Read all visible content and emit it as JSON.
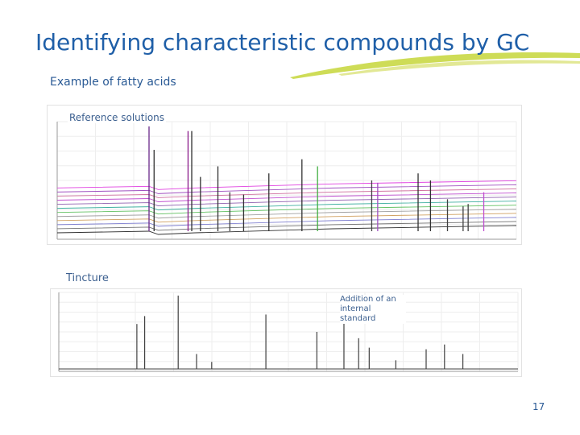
{
  "slide": {
    "title": "Identifying characteristic compounds by GC",
    "subtitle": "Example of fatty acids",
    "page_number": "17",
    "accent_colors": {
      "title": "#1f5fa8",
      "swoosh": "#c6d63a"
    }
  },
  "chart_data": [
    {
      "type": "line",
      "label": "Reference solutions",
      "xlim": [
        0,
        100
      ],
      "ylim": [
        0,
        100
      ],
      "grid": true,
      "stacked_traces": 12,
      "trace_colors": [
        "#e040e0",
        "#a050c0",
        "#d070a0",
        "#c050d0",
        "#9060b0",
        "#40b0a0",
        "#60c060",
        "#a0a0a0",
        "#d0a060",
        "#8080d0",
        "#707070",
        "#303030"
      ],
      "peaks": [
        {
          "x": 20.0,
          "height": 96,
          "color": "#6a2a8a"
        },
        {
          "x": 21.1,
          "height": 76,
          "color": "#303030"
        },
        {
          "x": 28.5,
          "height": 92,
          "color": "#8a1a8a"
        },
        {
          "x": 29.3,
          "height": 92,
          "color": "#303030"
        },
        {
          "x": 31.2,
          "height": 53,
          "color": "#303030"
        },
        {
          "x": 35.0,
          "height": 62,
          "color": "#303030"
        },
        {
          "x": 37.6,
          "height": 40,
          "color": "#404040"
        },
        {
          "x": 40.6,
          "height": 38,
          "color": "#303030"
        },
        {
          "x": 46.1,
          "height": 56,
          "color": "#303030"
        },
        {
          "x": 53.3,
          "height": 68,
          "color": "#303030"
        },
        {
          "x": 56.7,
          "height": 62,
          "color": "#40b040"
        },
        {
          "x": 68.5,
          "height": 50,
          "color": "#404040"
        },
        {
          "x": 69.8,
          "height": 48,
          "color": "#a050c0"
        },
        {
          "x": 78.6,
          "height": 56,
          "color": "#303030"
        },
        {
          "x": 81.3,
          "height": 50,
          "color": "#303030"
        },
        {
          "x": 85.0,
          "height": 34,
          "color": "#404040"
        },
        {
          "x": 88.4,
          "height": 28,
          "color": "#404040"
        },
        {
          "x": 89.5,
          "height": 30,
          "color": "#404040"
        },
        {
          "x": 92.9,
          "height": 40,
          "color": "#c050d0"
        }
      ]
    },
    {
      "type": "line",
      "label": "Tincture",
      "annotation": "Addition of an internal standard",
      "xlim": [
        0,
        100
      ],
      "ylim": [
        0,
        100
      ],
      "grid": true,
      "trace_color": "#404040",
      "peaks": [
        {
          "x": 17.0,
          "height": 60
        },
        {
          "x": 18.7,
          "height": 70
        },
        {
          "x": 26.0,
          "height": 96
        },
        {
          "x": 30.0,
          "height": 22
        },
        {
          "x": 33.3,
          "height": 12
        },
        {
          "x": 45.1,
          "height": 72
        },
        {
          "x": 56.2,
          "height": 50
        },
        {
          "x": 62.1,
          "height": 66
        },
        {
          "x": 65.3,
          "height": 42
        },
        {
          "x": 67.6,
          "height": 30
        },
        {
          "x": 73.4,
          "height": 14
        },
        {
          "x": 80.0,
          "height": 28
        },
        {
          "x": 84.0,
          "height": 34
        },
        {
          "x": 88.0,
          "height": 22
        }
      ]
    }
  ]
}
